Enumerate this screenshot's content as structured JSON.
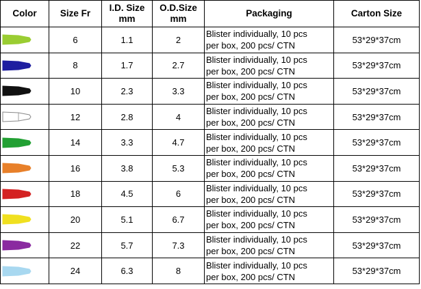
{
  "headers": {
    "color": "Color",
    "size_fr": "Size Fr",
    "id_size_line1": "I.D. Size",
    "id_size_line2": "mm",
    "od_size_line1": "O.D.Size",
    "od_size_line2": "mm",
    "packaging": "Packaging",
    "carton_size": "Carton Size"
  },
  "rows": [
    {
      "color": "#9acd32",
      "outline": "#9acd32",
      "size_fr": "6",
      "id": "1.1",
      "od": "2",
      "pack_line1": "Blister individually, 10 pcs",
      "pack_line2": "per box, 200 pcs/ CTN",
      "carton": "53*29*37cm"
    },
    {
      "color": "#1f1fa0",
      "outline": "#1f1fa0",
      "size_fr": "8",
      "id": "1.7",
      "od": "2.7",
      "pack_line1": "Blister individually, 10 pcs",
      "pack_line2": "per box, 200 pcs/ CTN",
      "carton": "53*29*37cm"
    },
    {
      "color": "#111111",
      "outline": "#111111",
      "size_fr": "10",
      "id": "2.3",
      "od": "3.3",
      "pack_line1": "Blister individually, 10 pcs",
      "pack_line2": "per box, 200 pcs/ CTN",
      "carton": "53*29*37cm"
    },
    {
      "color": "#ffffff",
      "outline": "#888888",
      "size_fr": "12",
      "id": "2.8",
      "od": "4",
      "pack_line1": "Blister individually, 10 pcs",
      "pack_line2": "per box, 200 pcs/ CTN",
      "carton": "53*29*37cm"
    },
    {
      "color": "#22a033",
      "outline": "#22a033",
      "size_fr": "14",
      "id": "3.3",
      "od": "4.7",
      "pack_line1": "Blister individually, 10 pcs",
      "pack_line2": "per box, 200 pcs/ CTN",
      "carton": "53*29*37cm"
    },
    {
      "color": "#e8802a",
      "outline": "#e8802a",
      "size_fr": "16",
      "id": "3.8",
      "od": "5.3",
      "pack_line1": "Blister individually, 10 pcs",
      "pack_line2": "per box, 200 pcs/ CTN",
      "carton": "53*29*37cm"
    },
    {
      "color": "#d42222",
      "outline": "#d42222",
      "size_fr": "18",
      "id": "4.5",
      "od": "6",
      "pack_line1": "Blister individually, 10 pcs",
      "pack_line2": "per box, 200 pcs/ CTN",
      "carton": "53*29*37cm"
    },
    {
      "color": "#f0e020",
      "outline": "#f0e020",
      "size_fr": "20",
      "id": "5.1",
      "od": "6.7",
      "pack_line1": "Blister individually, 10 pcs",
      "pack_line2": "per box, 200 pcs/ CTN",
      "carton": "53*29*37cm"
    },
    {
      "color": "#8a2aa0",
      "outline": "#8a2aa0",
      "size_fr": "22",
      "id": "5.7",
      "od": "7.3",
      "pack_line1": "Blister individually, 10 pcs",
      "pack_line2": "per box, 200 pcs/ CTN",
      "carton": "53*29*37cm"
    },
    {
      "color": "#a8d8f0",
      "outline": "#a8d8f0",
      "size_fr": "24",
      "id": "6.3",
      "od": "8",
      "pack_line1": "Blister individually, 10 pcs",
      "pack_line2": "per box, 200 pcs/ CTN",
      "carton": "53*29*37cm"
    }
  ]
}
